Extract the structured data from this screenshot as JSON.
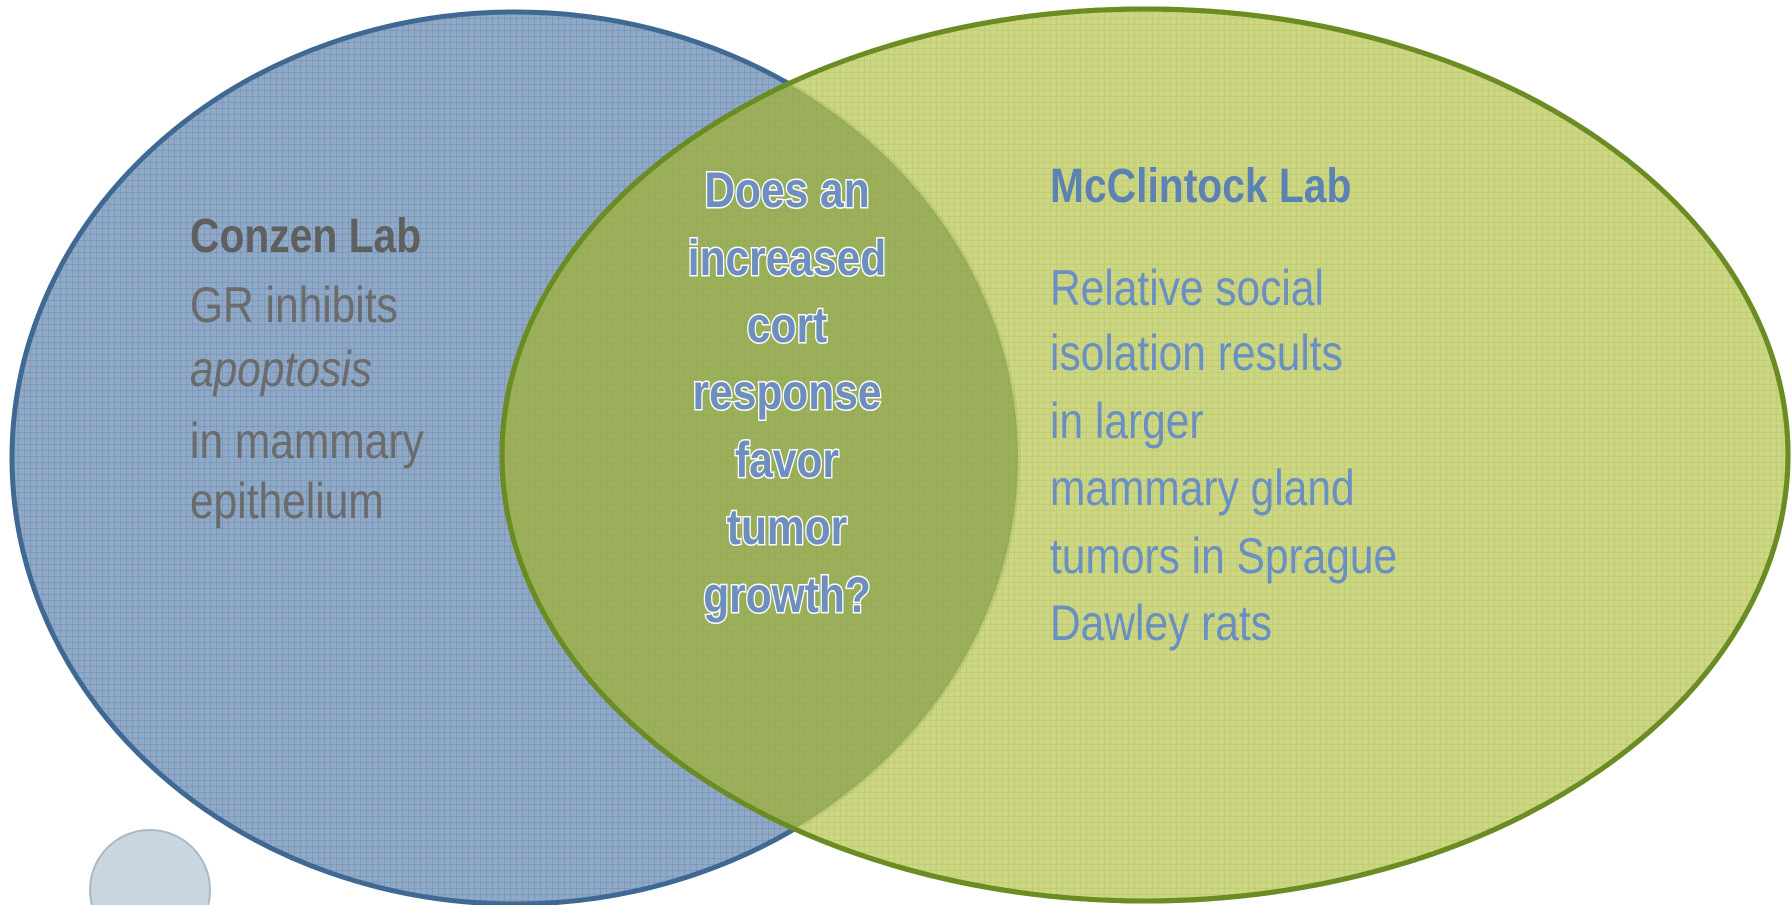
{
  "left": {
    "title": "Conzen Lab",
    "lines": [
      "GR inhibits",
      "apoptosis",
      "in mammary",
      "epithelium"
    ]
  },
  "center": {
    "lines": [
      "Does an",
      "increased",
      "cort",
      "response",
      "favor",
      "tumor",
      "growth?"
    ]
  },
  "right": {
    "title": "McClintock Lab",
    "lines": [
      "Relative social",
      "isolation results",
      "in larger",
      "mammary gland",
      "tumors in Sprague",
      "Dawley rats"
    ]
  }
}
